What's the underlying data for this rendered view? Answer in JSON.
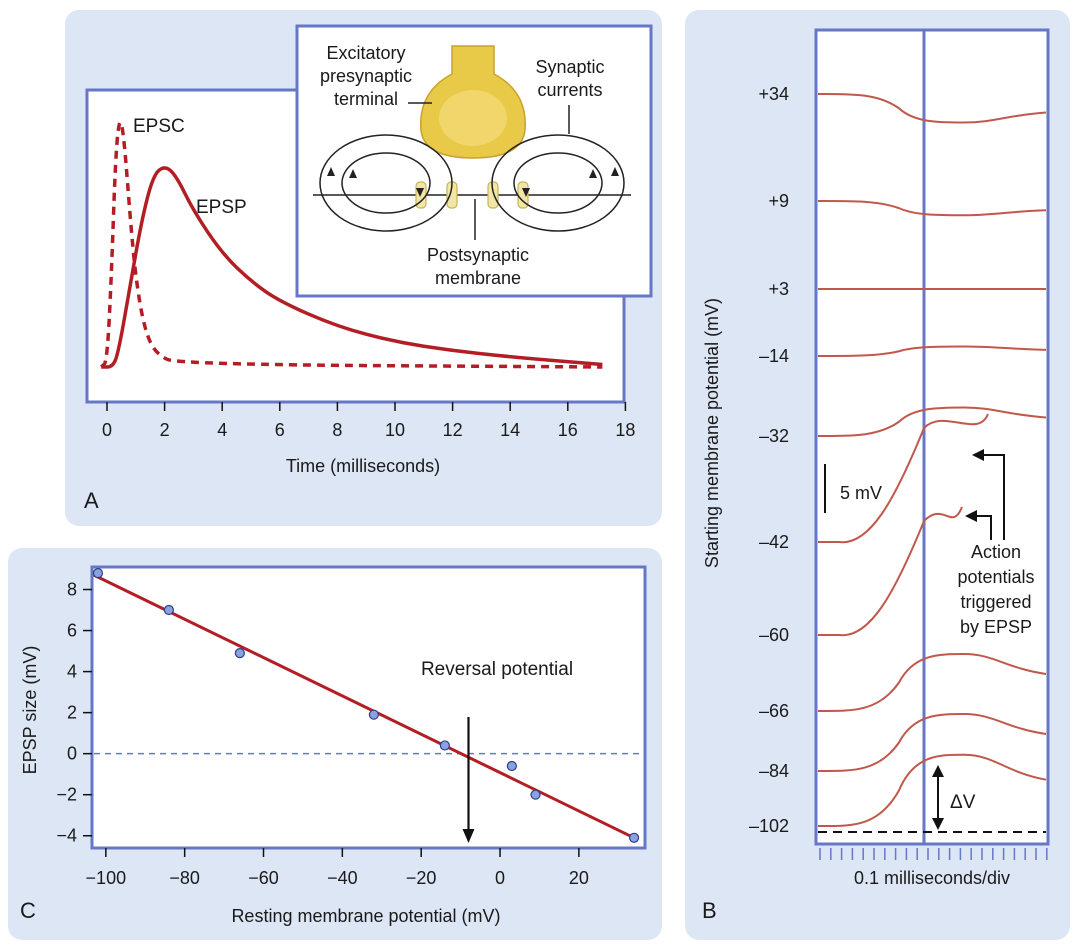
{
  "panels": {
    "a": "A",
    "b": "B",
    "c": "C"
  },
  "colors": {
    "panel_bg": "#dde6f5",
    "frame": "#6777c7",
    "curve": "#b31e24",
    "trace": "#c0594b",
    "terminal": "#e8c948",
    "dot": "#8aa2e0"
  },
  "panel_a": {
    "inset": {
      "presynaptic": [
        "Excitatory",
        "presynaptic",
        "terminal"
      ],
      "currents": [
        "Synaptic",
        "currents"
      ],
      "postsynaptic": [
        "Postsynaptic",
        "membrane"
      ]
    },
    "chart_data": {
      "type": "line",
      "xlabel": "Time (milliseconds)",
      "xlim": [
        -0.5,
        18
      ],
      "x_ticks": [
        0,
        2,
        4,
        6,
        8,
        10,
        12,
        14,
        16,
        18
      ],
      "series": [
        {
          "name": "EPSC",
          "style": "dashed",
          "points": [
            [
              -0.2,
              0
            ],
            [
              0,
              0.02
            ],
            [
              0.15,
              0.35
            ],
            [
              0.3,
              0.85
            ],
            [
              0.45,
              1
            ],
            [
              0.6,
              0.9
            ],
            [
              0.8,
              0.6
            ],
            [
              1,
              0.35
            ],
            [
              1.3,
              0.15
            ],
            [
              1.7,
              0.05
            ],
            [
              2.5,
              0.01
            ],
            [
              17.2,
              0
            ]
          ]
        },
        {
          "name": "EPSP",
          "style": "solid",
          "points": [
            [
              -0.2,
              0
            ],
            [
              0.2,
              0
            ],
            [
              0.4,
              0.06
            ],
            [
              0.8,
              0.32
            ],
            [
              1.2,
              0.58
            ],
            [
              1.6,
              0.76
            ],
            [
              2,
              0.8
            ],
            [
              2.4,
              0.76
            ],
            [
              3,
              0.62
            ],
            [
              4,
              0.45
            ],
            [
              5,
              0.34
            ],
            [
              6,
              0.26
            ],
            [
              8,
              0.16
            ],
            [
              10,
              0.1
            ],
            [
              12,
              0.065
            ],
            [
              14,
              0.04
            ],
            [
              17.2,
              0.01
            ]
          ]
        }
      ]
    }
  },
  "panel_b": {
    "chart_data": {
      "type": "line",
      "ylabel": "Starting membrane potential (mV)",
      "xlabel": "0.1 milliseconds/div",
      "traces": [
        {
          "label": "+34",
          "v": 34,
          "deflection_mV": -3
        },
        {
          "label": "+9",
          "v": 9,
          "deflection_mV": -1.5
        },
        {
          "label": "+3",
          "v": 3,
          "deflection_mV": 0
        },
        {
          "label": "–14",
          "v": -14,
          "deflection_mV": 1
        },
        {
          "label": "–32",
          "v": -32,
          "deflection_mV": 3
        },
        {
          "label": "–42",
          "v": -42,
          "deflection_mV": 12,
          "action_potential": true
        },
        {
          "label": "–60",
          "v": -60,
          "deflection_mV": 12,
          "action_potential": true
        },
        {
          "label": "–66",
          "v": -66,
          "deflection_mV": 6
        },
        {
          "label": "–84",
          "v": -84,
          "deflection_mV": 6
        },
        {
          "label": "–102",
          "v": -102,
          "deflection_mV": 7.5
        }
      ]
    },
    "scale_bar": "5 mV",
    "annotation": [
      "Action",
      "potentials",
      "triggered",
      "by EPSP"
    ],
    "delta_v": "ΔV"
  },
  "panel_c": {
    "chart_data": {
      "type": "scatter",
      "xlabel": "Resting membrane potential (mV)",
      "ylabel": "EPSP size (mV)",
      "xlim": [
        -103,
        35
      ],
      "ylim": [
        -4.5,
        9
      ],
      "x_ticks": [
        -100,
        -80,
        -60,
        -40,
        -20,
        0,
        20
      ],
      "y_ticks": [
        8,
        6,
        4,
        2,
        0,
        -2,
        -4
      ],
      "x_tick_labels": [
        "−100",
        "−80",
        "−60",
        "−40",
        "−20",
        "0",
        "20"
      ],
      "y_tick_labels": [
        "8",
        "6",
        "4",
        "2",
        "0",
        "−2",
        "−4"
      ],
      "points": [
        [
          -102,
          8.8
        ],
        [
          -84,
          7.0
        ],
        [
          -66,
          4.9
        ],
        [
          -32,
          1.9
        ],
        [
          -14,
          0.4
        ],
        [
          3,
          -0.6
        ],
        [
          9,
          -2.0
        ],
        [
          34,
          -4.1
        ]
      ],
      "fit_line": [
        [
          -103,
          8.7
        ],
        [
          34,
          -4.1
        ]
      ],
      "reversal_potential": -8,
      "annotation": "Reversal potential"
    }
  }
}
